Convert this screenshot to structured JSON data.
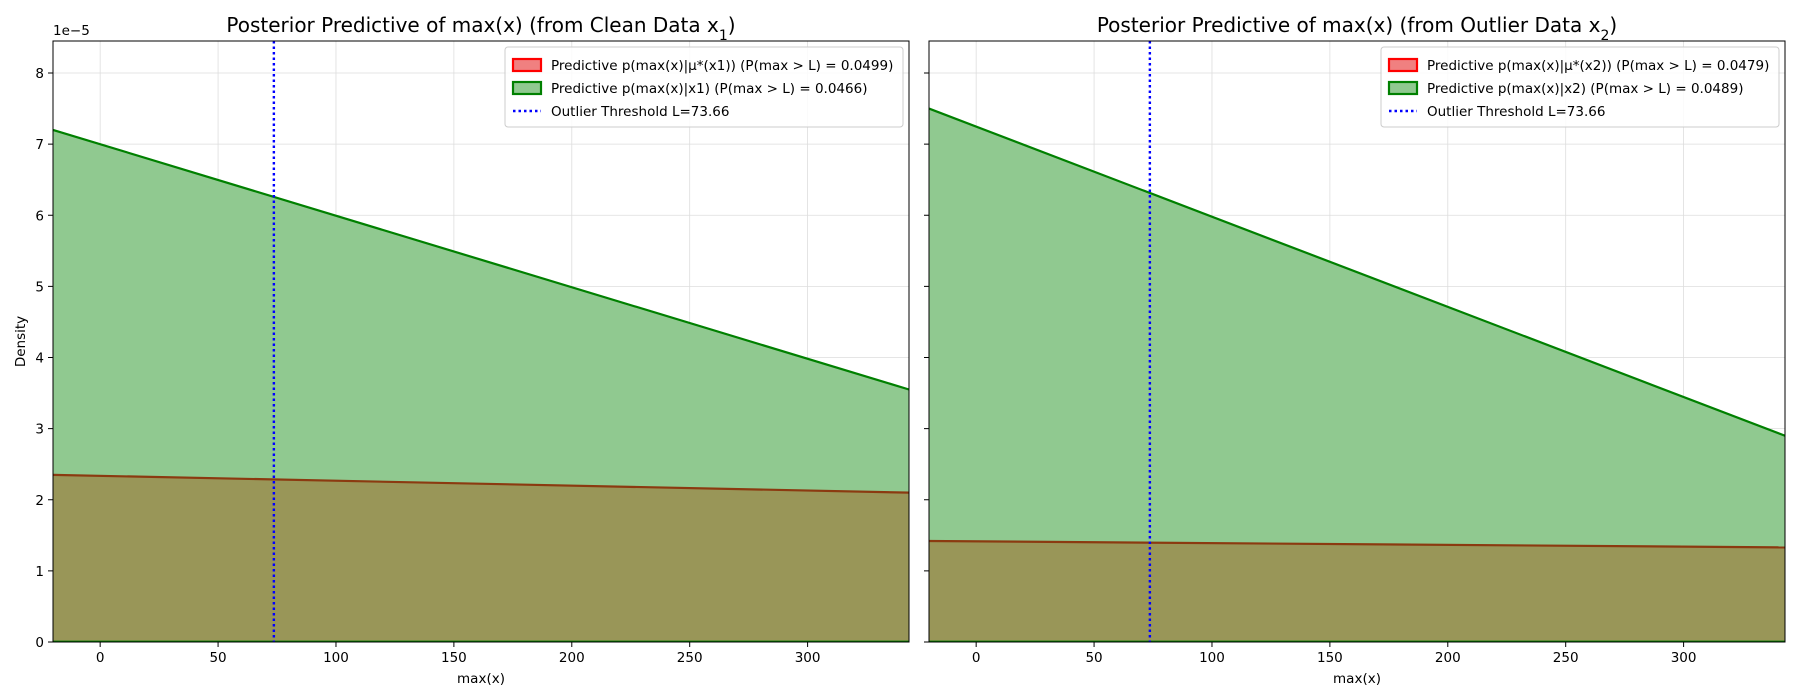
{
  "colors": {
    "predictive_mu_star_edge": "#ff0000",
    "predictive_mu_star_fill": "#f08080",
    "predictive_posterior_edge": "#008000",
    "predictive_posterior_fill": "#90c990",
    "overlap_fill": "#999658",
    "overlap_line": "#8b3a10",
    "threshold_line": "#0000ff",
    "grid": "#dddddd"
  },
  "chart_data": [
    {
      "type": "area",
      "title": "Posterior Predictive of max(x) (from Clean Data x",
      "title_subscript": "1",
      "title_suffix": ")",
      "xlabel": "max(x)",
      "ylabel": "Density",
      "y_offset_label": "1e−5",
      "xlim": [
        -20,
        343
      ],
      "ylim": [
        0,
        8.45
      ],
      "xticks": [
        0,
        50,
        100,
        150,
        200,
        250,
        300
      ],
      "xtick_labels": [
        "0",
        "50",
        "100",
        "150",
        "200",
        "250",
        "300"
      ],
      "yticks": [
        0,
        1,
        2,
        3,
        4,
        5,
        6,
        7,
        8
      ],
      "ytick_labels": [
        "0",
        "1",
        "2",
        "3",
        "4",
        "5",
        "6",
        "7",
        "8"
      ],
      "grid": true,
      "legend_position": "top-right",
      "series": [
        {
          "name": "Predictive p(max(x)|μ*(x1)) (P(max > L) = 0.0499)",
          "x": [
            -20,
            343
          ],
          "y": [
            2.35,
            2.1
          ],
          "style": "red"
        },
        {
          "name": "Predictive p(max(x)|x1) (P(max > L) = 0.0466)",
          "x": [
            -20,
            343
          ],
          "y": [
            7.2,
            3.55
          ],
          "style": "green"
        }
      ],
      "threshold": {
        "name": "Outlier Threshold L=73.66",
        "x": 73.66
      }
    },
    {
      "type": "area",
      "title": "Posterior Predictive of max(x) (from Outlier Data x",
      "title_subscript": "2",
      "title_suffix": ")",
      "xlabel": "max(x)",
      "ylabel": "",
      "y_offset_label": "",
      "xlim": [
        -20,
        343
      ],
      "ylim": [
        0,
        8.45
      ],
      "xticks": [
        0,
        50,
        100,
        150,
        200,
        250,
        300
      ],
      "xtick_labels": [
        "0",
        "50",
        "100",
        "150",
        "200",
        "250",
        "300"
      ],
      "yticks": [
        0,
        1,
        2,
        3,
        4,
        5,
        6,
        7,
        8
      ],
      "ytick_labels": [],
      "grid": true,
      "legend_position": "top-right",
      "series": [
        {
          "name": "Predictive p(max(x)|μ*(x2)) (P(max > L) = 0.0479)",
          "x": [
            -20,
            343
          ],
          "y": [
            1.42,
            1.33
          ],
          "style": "red"
        },
        {
          "name": "Predictive p(max(x)|x2) (P(max > L) = 0.0489)",
          "x": [
            -20,
            343
          ],
          "y": [
            7.5,
            2.9
          ],
          "style": "green"
        }
      ],
      "threshold": {
        "name": "Outlier Threshold L=73.66",
        "x": 73.66
      }
    }
  ]
}
